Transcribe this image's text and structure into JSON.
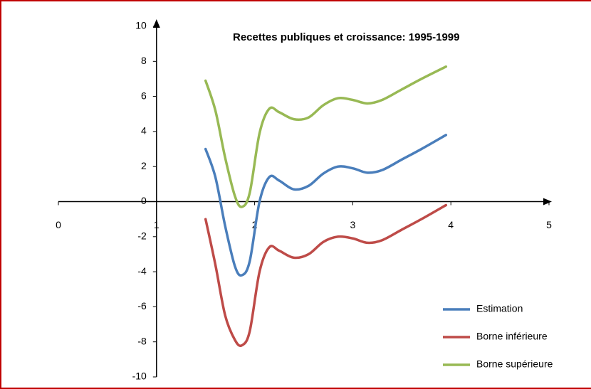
{
  "chart_data": {
    "type": "line",
    "title": "Recettes publiques et croissance: 1995-1999",
    "x": [
      1.5,
      1.6,
      1.7,
      1.8,
      1.87,
      1.95,
      2.05,
      2.15,
      2.25,
      2.4,
      2.55,
      2.7,
      2.85,
      3.0,
      3.15,
      3.3,
      3.5,
      3.7,
      3.95
    ],
    "series": [
      {
        "name": "Estimation",
        "color": "#4a7ebb",
        "values": [
          3,
          1.4,
          -1.4,
          -3.7,
          -4.2,
          -3.4,
          0,
          1.4,
          1.2,
          0.7,
          0.9,
          1.6,
          2,
          1.9,
          1.65,
          1.8,
          2.4,
          3,
          3.8
        ]
      },
      {
        "name": "Borne inférieure",
        "color": "#be4b48",
        "values": [
          -1,
          -3.6,
          -6.5,
          -7.9,
          -8.2,
          -7.4,
          -4,
          -2.6,
          -2.8,
          -3.2,
          -3,
          -2.3,
          -2,
          -2.1,
          -2.35,
          -2.2,
          -1.6,
          -1,
          -0.2
        ]
      },
      {
        "name": "Borne supérieure",
        "color": "#98b954",
        "values": [
          6.9,
          5.2,
          2.5,
          0.3,
          -0.3,
          0.5,
          3.9,
          5.3,
          5.1,
          4.7,
          4.8,
          5.5,
          5.9,
          5.8,
          5.6,
          5.8,
          6.4,
          7,
          7.7
        ]
      }
    ],
    "xlim": [
      0,
      5
    ],
    "xticks": [
      0,
      1,
      2,
      3,
      4,
      5
    ],
    "ylim": [
      -10,
      10
    ],
    "yticks": [
      -10,
      -8,
      -6,
      -4,
      -2,
      0,
      2,
      4,
      6,
      8,
      10
    ]
  }
}
